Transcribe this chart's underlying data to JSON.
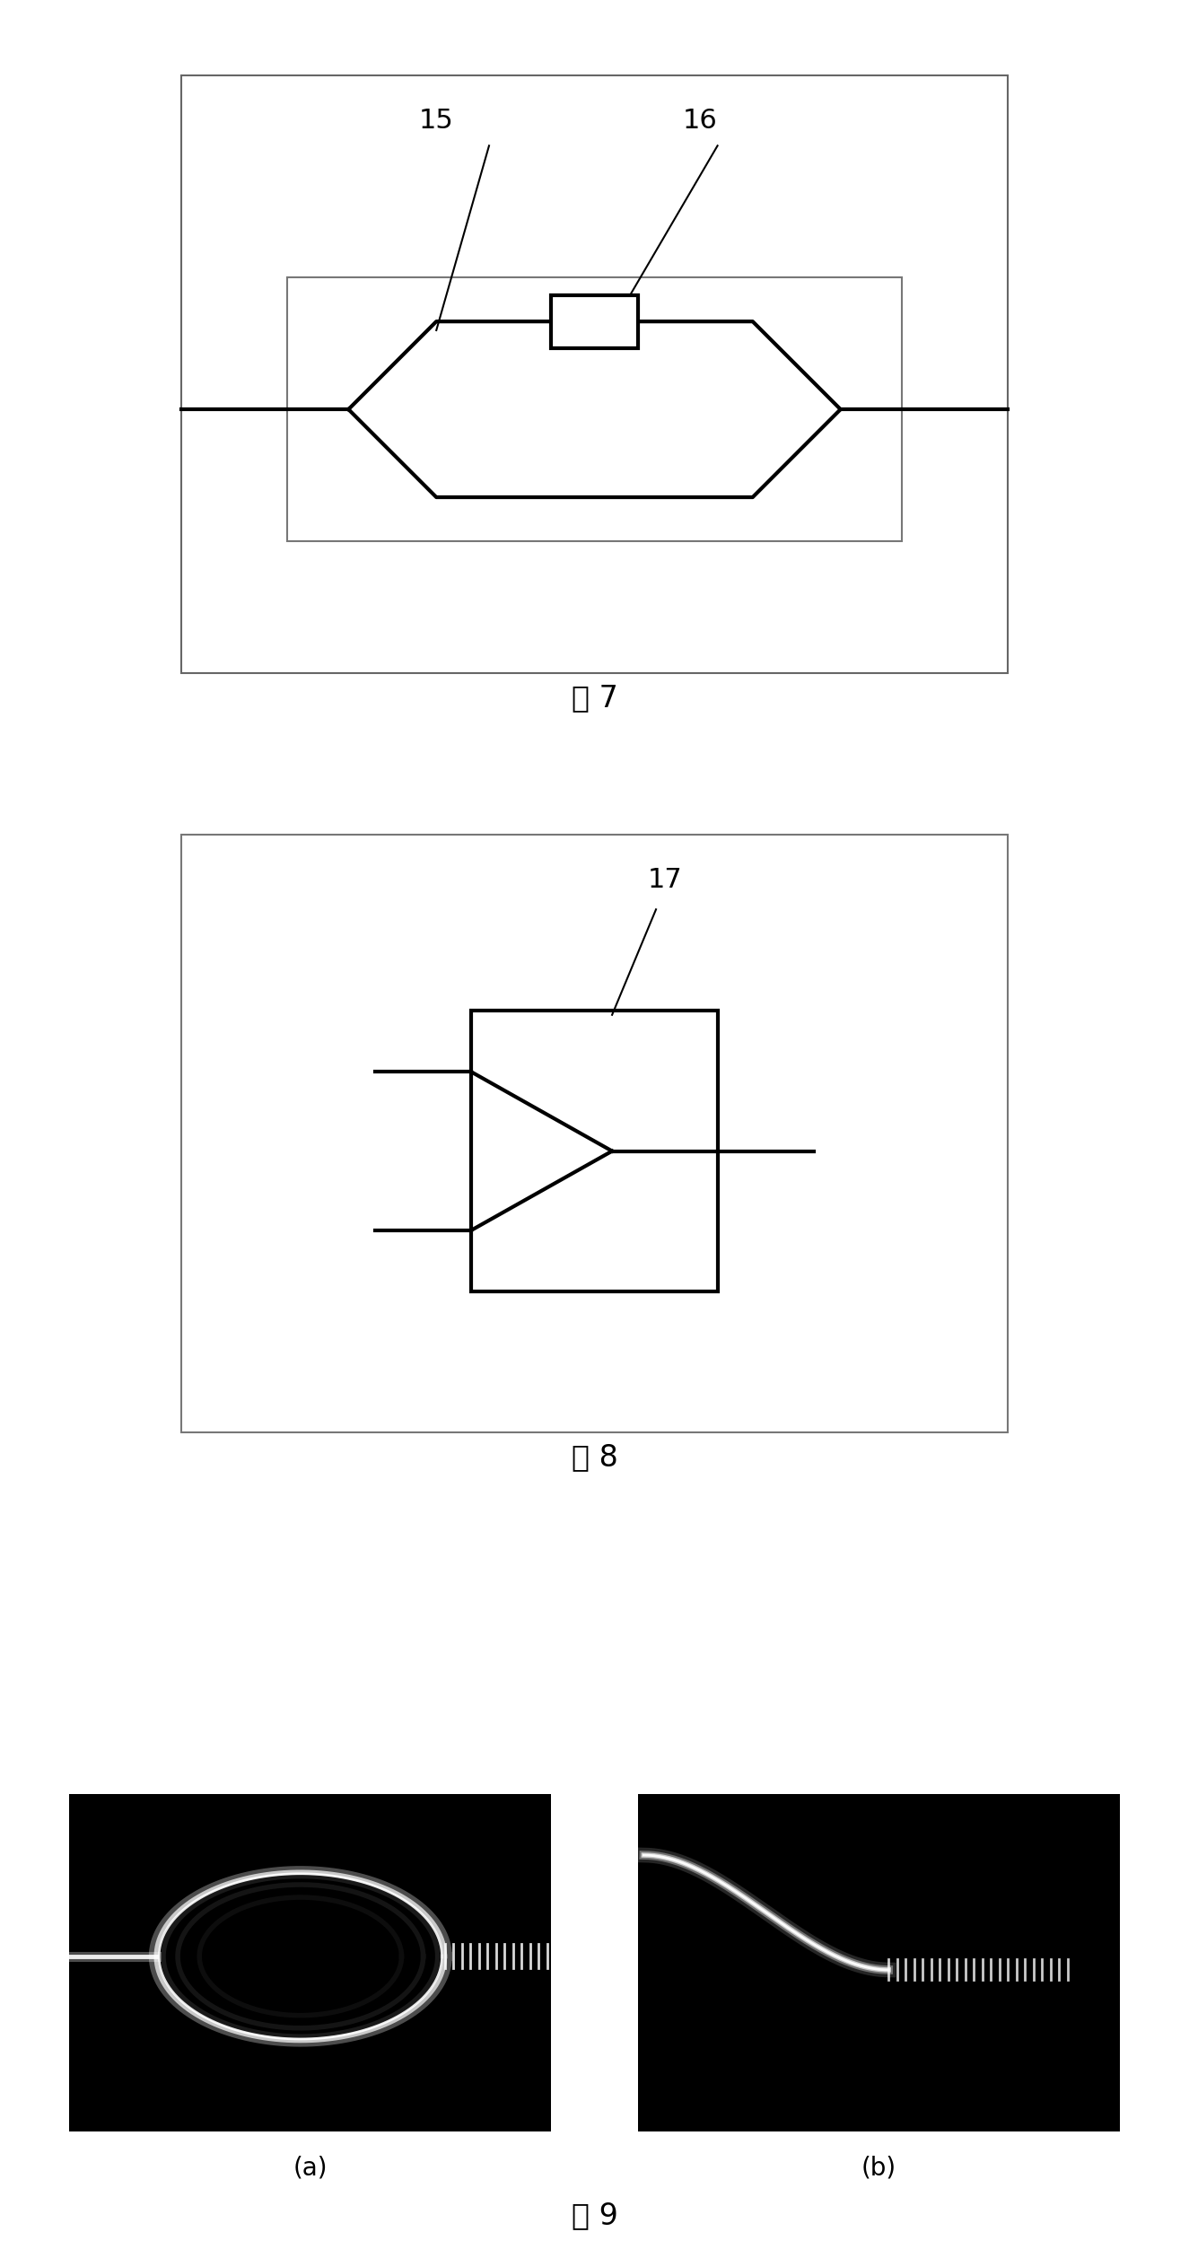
{
  "fig_width": 13.25,
  "fig_height": 25.26,
  "bg_color": "#ffffff",
  "line_color": "#000000",
  "label_15": "15",
  "label_16": "16",
  "label_17": "17",
  "caption_7": "图 7",
  "caption_8": "图 8",
  "caption_9": "图 9",
  "sub_a": "(a)",
  "sub_b": "(b)"
}
